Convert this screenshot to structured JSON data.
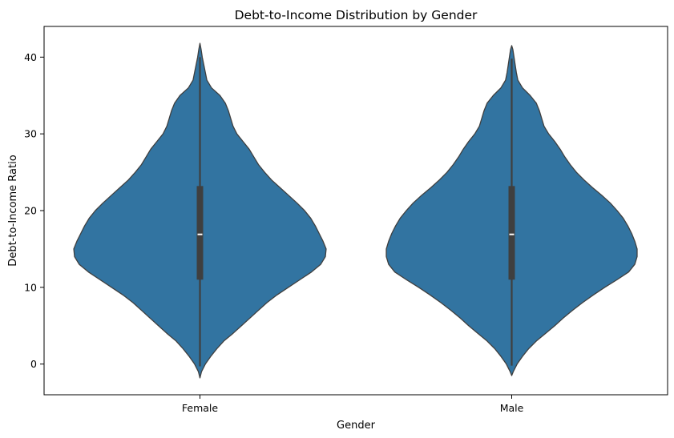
{
  "chart_data": {
    "type": "violin",
    "title": "Debt-to-Income Distribution by Gender",
    "xlabel": "Gender",
    "ylabel": "Debt-to-Income Ratio",
    "categories": [
      "Female",
      "Male"
    ],
    "ylim": [
      -4,
      44
    ],
    "yticks": [
      0,
      10,
      20,
      30,
      40
    ],
    "grid": false,
    "fill_color": "#3274a1",
    "outline_color": "#3f3f3f",
    "violins": [
      {
        "category": "Female",
        "min": -1.8,
        "max": 41.8,
        "q1": 11.0,
        "median": 16.9,
        "q3": 23.2,
        "whisker_low": -0.3,
        "whisker_high": 40.0,
        "density": [
          [
            -1.8,
            0.0
          ],
          [
            -1.0,
            0.02
          ],
          [
            0.0,
            0.07
          ],
          [
            1.0,
            0.14
          ],
          [
            2.0,
            0.22
          ],
          [
            3.0,
            0.31
          ],
          [
            4.0,
            0.43
          ],
          [
            5.0,
            0.54
          ],
          [
            6.0,
            0.65
          ],
          [
            7.0,
            0.76
          ],
          [
            8.0,
            0.87
          ],
          [
            9.0,
            1.0
          ],
          [
            10.0,
            1.15
          ],
          [
            11.0,
            1.3
          ],
          [
            12.0,
            1.45
          ],
          [
            13.0,
            1.57
          ],
          [
            14.0,
            1.63
          ],
          [
            15.0,
            1.64
          ],
          [
            16.0,
            1.6
          ],
          [
            17.0,
            1.55
          ],
          [
            18.0,
            1.5
          ],
          [
            19.0,
            1.44
          ],
          [
            20.0,
            1.36
          ],
          [
            21.0,
            1.26
          ],
          [
            22.0,
            1.15
          ],
          [
            23.0,
            1.04
          ],
          [
            24.0,
            0.93
          ],
          [
            25.0,
            0.84
          ],
          [
            26.0,
            0.76
          ],
          [
            27.0,
            0.7
          ],
          [
            28.0,
            0.64
          ],
          [
            29.0,
            0.56
          ],
          [
            30.0,
            0.48
          ],
          [
            31.0,
            0.43
          ],
          [
            32.0,
            0.4
          ],
          [
            33.0,
            0.37
          ],
          [
            34.0,
            0.33
          ],
          [
            35.0,
            0.26
          ],
          [
            36.0,
            0.15
          ],
          [
            37.0,
            0.09
          ],
          [
            38.0,
            0.07
          ],
          [
            39.0,
            0.05
          ],
          [
            40.0,
            0.03
          ],
          [
            41.0,
            0.015
          ],
          [
            41.8,
            0.0
          ]
        ]
      },
      {
        "category": "Male",
        "min": -1.5,
        "max": 41.5,
        "q1": 11.0,
        "median": 16.9,
        "q3": 23.2,
        "whisker_low": -0.2,
        "whisker_high": 39.8,
        "density": [
          [
            -1.5,
            0.0
          ],
          [
            -1.0,
            0.02
          ],
          [
            0.0,
            0.07
          ],
          [
            1.0,
            0.14
          ],
          [
            2.0,
            0.22
          ],
          [
            3.0,
            0.32
          ],
          [
            4.0,
            0.44
          ],
          [
            5.0,
            0.56
          ],
          [
            6.0,
            0.67
          ],
          [
            7.0,
            0.79
          ],
          [
            8.0,
            0.92
          ],
          [
            9.0,
            1.06
          ],
          [
            10.0,
            1.21
          ],
          [
            11.0,
            1.37
          ],
          [
            12.0,
            1.52
          ],
          [
            13.0,
            1.6
          ],
          [
            14.0,
            1.63
          ],
          [
            15.0,
            1.63
          ],
          [
            16.0,
            1.6
          ],
          [
            17.0,
            1.56
          ],
          [
            18.0,
            1.51
          ],
          [
            19.0,
            1.45
          ],
          [
            20.0,
            1.37
          ],
          [
            21.0,
            1.28
          ],
          [
            22.0,
            1.17
          ],
          [
            23.0,
            1.05
          ],
          [
            24.0,
            0.94
          ],
          [
            25.0,
            0.84
          ],
          [
            26.0,
            0.76
          ],
          [
            27.0,
            0.69
          ],
          [
            28.0,
            0.63
          ],
          [
            29.0,
            0.56
          ],
          [
            30.0,
            0.48
          ],
          [
            31.0,
            0.42
          ],
          [
            32.0,
            0.39
          ],
          [
            33.0,
            0.36
          ],
          [
            34.0,
            0.32
          ],
          [
            35.0,
            0.24
          ],
          [
            36.0,
            0.14
          ],
          [
            37.0,
            0.08
          ],
          [
            38.0,
            0.06
          ],
          [
            39.0,
            0.045
          ],
          [
            40.0,
            0.03
          ],
          [
            41.0,
            0.015
          ],
          [
            41.5,
            0.0
          ]
        ]
      }
    ]
  }
}
